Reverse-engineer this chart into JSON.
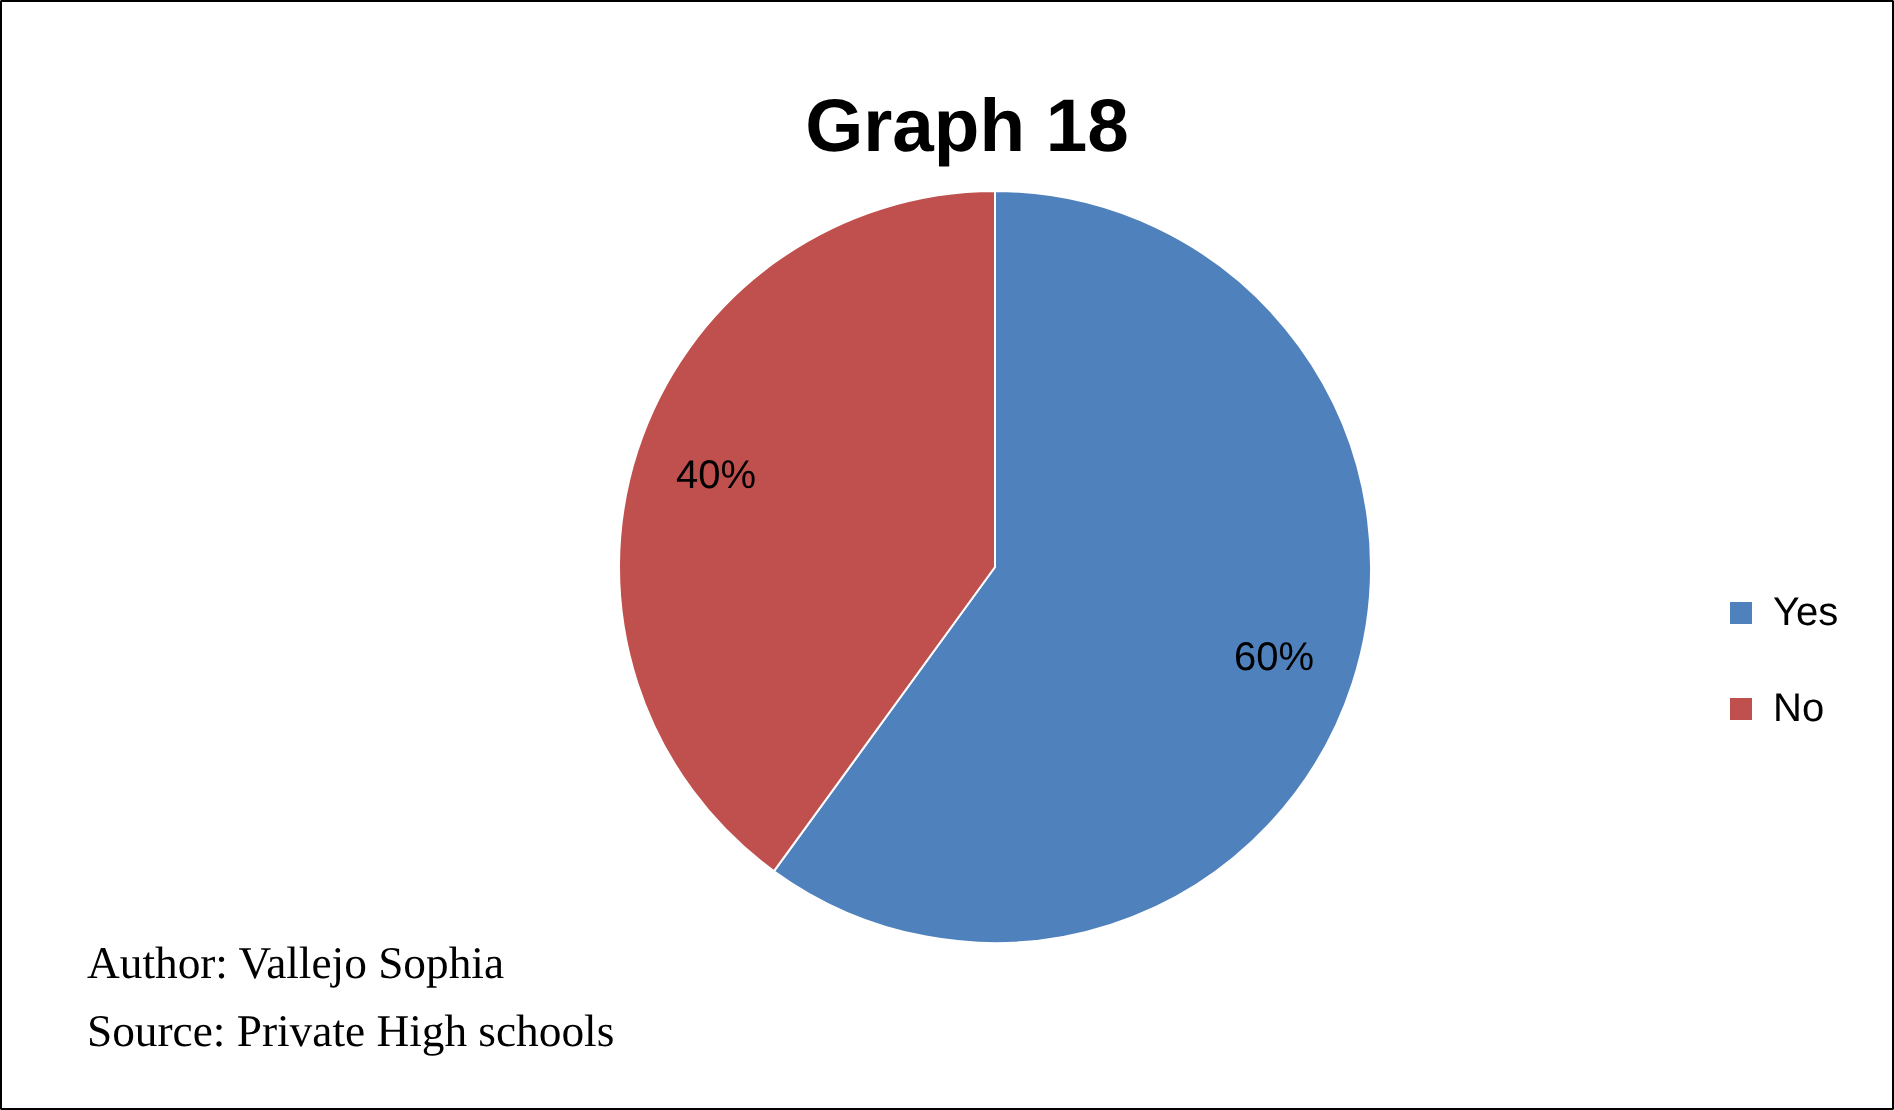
{
  "chart_data": {
    "type": "pie",
    "title": "Graph 18",
    "categories": [
      "Yes",
      "No"
    ],
    "values": [
      60,
      40
    ],
    "colors": [
      "#4f81bd",
      "#c0504d"
    ],
    "value_labels": [
      "60%",
      "40%"
    ],
    "legend": "right",
    "annotations": [
      "Author: Vallejo  Sophia",
      "Source: Private  High  schools"
    ]
  }
}
